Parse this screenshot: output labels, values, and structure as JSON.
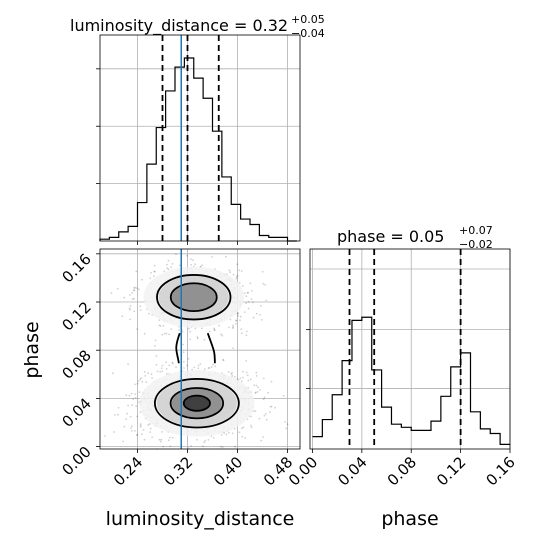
{
  "figure": {
    "ld_title": {
      "main": "luminosity_distance = 0.32",
      "sup": "+0.05",
      "sub": "−0.04"
    },
    "phase_title": {
      "main": "phase = 0.05",
      "sup": "+0.07",
      "sub": "−0.02"
    },
    "x_label_ld": "luminosity_distance",
    "y_label_phase": "phase",
    "x_label_phase": "phase"
  },
  "colors": {
    "truth": "#1f77b4",
    "line": "#000000",
    "grid": "#b0b0b0"
  },
  "chart_data": [
    {
      "type": "histogram",
      "panel": "luminosity_distance-1d",
      "xlim": [
        0.18,
        0.5
      ],
      "grid": true,
      "bin_edges": [
        0.18,
        0.195,
        0.21,
        0.225,
        0.24,
        0.255,
        0.27,
        0.285,
        0.3,
        0.315,
        0.33,
        0.345,
        0.36,
        0.375,
        0.39,
        0.405,
        0.42,
        0.435,
        0.45,
        0.465,
        0.48,
        0.495
      ],
      "counts": [
        0.01,
        0.02,
        0.05,
        0.08,
        0.21,
        0.42,
        0.62,
        0.82,
        0.95,
        1.0,
        0.89,
        0.78,
        0.6,
        0.35,
        0.2,
        0.12,
        0.09,
        0.03,
        0.02,
        0.02,
        0.0
      ],
      "quantiles": [
        0.28,
        0.32,
        0.37
      ],
      "truth": 0.31
    },
    {
      "type": "histogram",
      "panel": "phase-1d",
      "xlim": [
        -0.002,
        0.16
      ],
      "x_ticks": [
        0.0,
        0.04,
        0.08,
        0.12,
        0.16
      ],
      "x_tick_labels": [
        "0.00",
        "0.04",
        "0.08",
        "0.12",
        "0.16"
      ],
      "grid": true,
      "bin_edges": [
        0.0,
        0.008,
        0.016,
        0.024,
        0.032,
        0.04,
        0.048,
        0.056,
        0.064,
        0.072,
        0.08,
        0.088,
        0.096,
        0.104,
        0.112,
        0.12,
        0.128,
        0.136,
        0.144,
        0.152,
        0.16
      ],
      "counts": [
        0.08,
        0.19,
        0.35,
        0.57,
        0.83,
        0.85,
        0.51,
        0.27,
        0.16,
        0.14,
        0.12,
        0.12,
        0.18,
        0.34,
        0.53,
        0.62,
        0.24,
        0.13,
        0.1,
        0.03
      ],
      "quantiles": [
        0.03,
        0.05,
        0.12
      ]
    },
    {
      "type": "contour-scatter",
      "panel": "luminosity_distance-vs-phase",
      "xlim": [
        0.18,
        0.5
      ],
      "ylim": [
        -0.002,
        0.164
      ],
      "x_ticks": [
        0.24,
        0.32,
        0.4,
        0.48
      ],
      "x_tick_labels": [
        "0.24",
        "0.32",
        "0.40",
        "0.48"
      ],
      "y_ticks": [
        0.0,
        0.04,
        0.08,
        0.12,
        0.16
      ],
      "y_tick_labels": [
        "0.00",
        "0.04",
        "0.08",
        "0.12",
        "0.16"
      ],
      "grid": true,
      "truth": 0.31,
      "modes": [
        {
          "x": 0.335,
          "y": 0.036,
          "sx": 0.04,
          "sy": 0.012,
          "weight": 0.6
        },
        {
          "x": 0.33,
          "y": 0.124,
          "sx": 0.035,
          "sy": 0.011,
          "weight": 0.4
        }
      ]
    }
  ]
}
